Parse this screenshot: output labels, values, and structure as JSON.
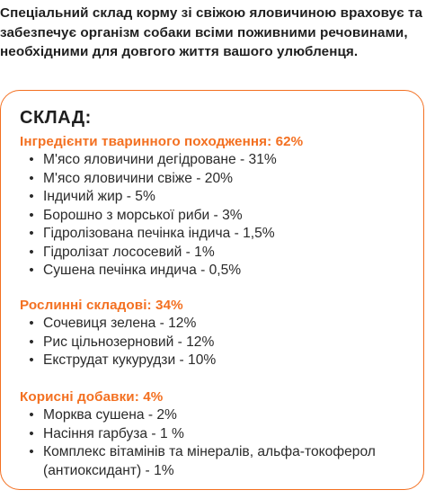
{
  "intro_text": "Спеціальний склад корму зі свіжою яловичиною враховує та забезпечує організм собаки всіми поживними речовинами, необхідними для довгого життя вашого улюбленця.",
  "card": {
    "title": "СКЛАД:",
    "border_color": "#f37021",
    "bullet": "•"
  },
  "sections": [
    {
      "heading": "Інгредієнти тваринного походження: 62%",
      "items": [
        "М'ясо яловичини дегідроване - 31%",
        "М'ясо яловичини свіже - 20%",
        "Індичий жир - 5%",
        "Борошно з морської риби - 3%",
        "Гідролізована печінка індича - 1,5%",
        "Гідролізат лососевий - 1%",
        "Сушена печінка индича - 0,5%"
      ]
    },
    {
      "heading": "Рослинні складові: 34%",
      "items": [
        "Сочевиця зелена - 12%",
        "Рис цільнозерновий - 12%",
        "Екструдат кукурудзи - 10%"
      ]
    },
    {
      "heading": "Корисні добавки: 4%",
      "items": [
        "Морква сушена - 2%",
        "Насіння гарбуза - 1 %",
        "Комплекс вітамінів та мінералів, альфа-токоферол (антиоксидант) - 1%"
      ]
    }
  ],
  "colors": {
    "accent": "#f37021",
    "text": "#1f1f1f"
  }
}
